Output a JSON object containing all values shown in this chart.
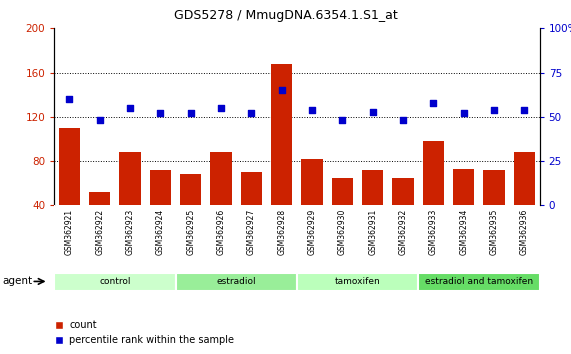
{
  "title": "GDS5278 / MmugDNA.6354.1.S1_at",
  "samples": [
    "GSM362921",
    "GSM362922",
    "GSM362923",
    "GSM362924",
    "GSM362925",
    "GSM362926",
    "GSM362927",
    "GSM362928",
    "GSM362929",
    "GSM362930",
    "GSM362931",
    "GSM362932",
    "GSM362933",
    "GSM362934",
    "GSM362935",
    "GSM362936"
  ],
  "counts": [
    110,
    52,
    88,
    72,
    68,
    88,
    70,
    168,
    82,
    65,
    72,
    65,
    98,
    73,
    72,
    88
  ],
  "percentiles": [
    60,
    48,
    55,
    52,
    52,
    55,
    52,
    65,
    54,
    48,
    53,
    48,
    58,
    52,
    54,
    54
  ],
  "bar_color": "#cc2200",
  "dot_color": "#0000cc",
  "ylim_left": [
    40,
    200
  ],
  "ylim_right": [
    0,
    100
  ],
  "yticks_left": [
    40,
    80,
    120,
    160,
    200
  ],
  "yticks_right": [
    0,
    25,
    50,
    75,
    100
  ],
  "groups": [
    {
      "label": "control",
      "start": 0,
      "end": 4,
      "color": "#ccffcc"
    },
    {
      "label": "estradiol",
      "start": 4,
      "end": 8,
      "color": "#99ee99"
    },
    {
      "label": "tamoxifen",
      "start": 8,
      "end": 12,
      "color": "#bbffbb"
    },
    {
      "label": "estradiol and tamoxifen",
      "start": 12,
      "end": 16,
      "color": "#66dd66"
    }
  ],
  "agent_label": "agent",
  "legend_count_label": "count",
  "legend_pct_label": "percentile rank within the sample",
  "tick_bg": "#d8d8d8",
  "plot_bg": "#ffffff"
}
